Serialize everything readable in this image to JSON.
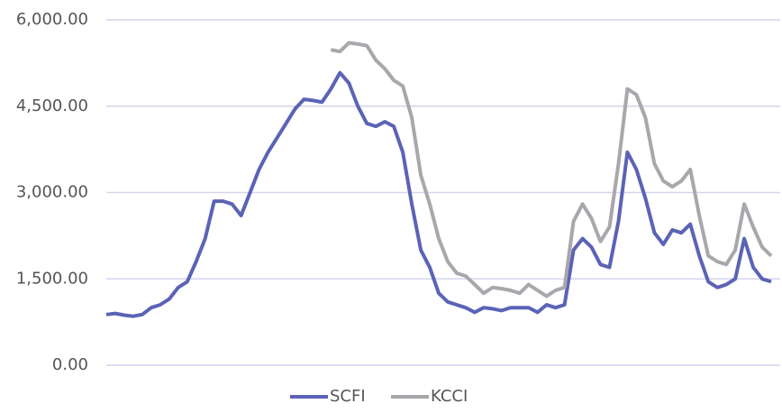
{
  "chart_data": {
    "type": "line",
    "categories": [
      null,
      null,
      null,
      null,
      null,
      null,
      null,
      null,
      null,
      null,
      null,
      null,
      null,
      null,
      null,
      null,
      null,
      null,
      null,
      null,
      null,
      null,
      null,
      null,
      null,
      null,
      null,
      null,
      null,
      null,
      null,
      null,
      null,
      null,
      null,
      null,
      null,
      null,
      null,
      null,
      null,
      null,
      null,
      null,
      null,
      null,
      null,
      null,
      null,
      null,
      null,
      null,
      null,
      null,
      null,
      null,
      null,
      null,
      null,
      null,
      null,
      null,
      null,
      null,
      null,
      null,
      null,
      null,
      null,
      null,
      null,
      null,
      null,
      null,
      null
    ],
    "series": [
      {
        "name": "SCFI",
        "color": "#5b63b6",
        "values": [
          880,
          900,
          870,
          850,
          880,
          1000,
          1050,
          1150,
          1350,
          1450,
          1800,
          2200,
          2850,
          2850,
          2800,
          2600,
          3000,
          3400,
          3700,
          3950,
          4200,
          4450,
          4620,
          4600,
          4570,
          4800,
          5080,
          4900,
          4500,
          4200,
          4150,
          4230,
          4150,
          3700,
          2800,
          2000,
          1700,
          1250,
          1100,
          1050,
          1000,
          920,
          1000,
          980,
          950,
          1000,
          1000,
          1000,
          920,
          1050,
          1000,
          1050,
          2000,
          2200,
          2050,
          1750,
          1700,
          2500,
          3700,
          3400,
          2900,
          2300,
          2100,
          2350,
          2300,
          2450,
          1900,
          1450,
          1350,
          1400,
          1500,
          2200,
          1700,
          1500,
          1450
        ]
      },
      {
        "name": "KCCI",
        "color": "#a7a7ac",
        "values": [
          null,
          null,
          null,
          null,
          null,
          null,
          null,
          null,
          null,
          null,
          null,
          null,
          null,
          null,
          null,
          null,
          null,
          null,
          null,
          null,
          null,
          null,
          null,
          null,
          null,
          5480,
          5450,
          5600,
          5580,
          5550,
          5300,
          5150,
          4950,
          4850,
          4300,
          3300,
          2800,
          2200,
          1800,
          1600,
          1550,
          1400,
          1250,
          1350,
          1330,
          1300,
          1250,
          1400,
          1300,
          1200,
          1300,
          1350,
          2500,
          2800,
          2550,
          2150,
          2400,
          3500,
          4800,
          4700,
          4300,
          3500,
          3200,
          3100,
          3200,
          3400,
          2600,
          1900,
          1800,
          1750,
          2000,
          2800,
          2400,
          2050,
          1900
        ]
      }
    ],
    "ylim": [
      0,
      6000
    ],
    "yticks": [
      {
        "value": 0,
        "label": "0.00"
      },
      {
        "value": 1500,
        "label": "1,500.00"
      },
      {
        "value": 3000,
        "label": "3,000.00"
      },
      {
        "value": 4500,
        "label": "4,500.00"
      },
      {
        "value": 6000,
        "label": "6,000.00"
      }
    ],
    "grid": true,
    "legend": "bottom"
  }
}
